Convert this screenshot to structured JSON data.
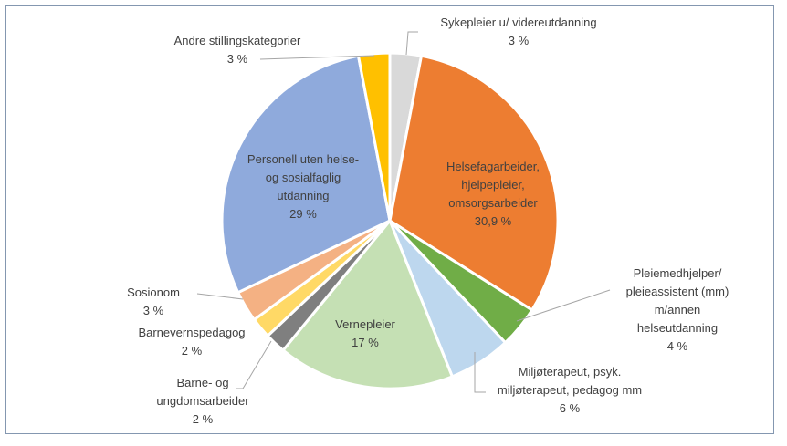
{
  "chart_data": {
    "type": "pie",
    "title": "",
    "slices": [
      {
        "label": [
          "Sykepleier u/ videreutdanning"
        ],
        "value": 3,
        "value_label": "3 %",
        "color": "#d9d9d9"
      },
      {
        "label": [
          "Helsefagarbeider,",
          "hjelpepleier,",
          "omsorgsarbeider"
        ],
        "value": 30.9,
        "value_label": "30,9 %",
        "color": "#ed7d31"
      },
      {
        "label": [
          "Pleiemedhjelper/",
          "pleieassistent (mm)",
          "m/annen",
          "helseutdanning"
        ],
        "value": 4,
        "value_label": "4 %",
        "color": "#70ad47"
      },
      {
        "label": [
          "Miljøterapeut, psyk.",
          "miljøterapeut, pedagog mm"
        ],
        "value": 6,
        "value_label": "6 %",
        "color": "#bdd7ee"
      },
      {
        "label": [
          "Vernepleier"
        ],
        "value": 17,
        "value_label": "17 %",
        "color": "#c5e0b4"
      },
      {
        "label": [
          "Barne- og",
          "ungdomsarbeider"
        ],
        "value": 2,
        "value_label": "2 %",
        "color": "#7f7f7f"
      },
      {
        "label": [
          "Barnevernspedagog"
        ],
        "value": 2,
        "value_label": "2 %",
        "color": "#ffd966"
      },
      {
        "label": [
          "Sosionom"
        ],
        "value": 3,
        "value_label": "3 %",
        "color": "#f4b183"
      },
      {
        "label": [
          "Personell uten helse-",
          "og sosialfaglig",
          "utdanning"
        ],
        "value": 29,
        "value_label": "29 %",
        "color": "#8faadc"
      },
      {
        "label": [
          "Andre stillingskategorier"
        ],
        "value": 3,
        "value_label": "3 %",
        "color": "#ffc000"
      }
    ],
    "start_angle": "12 o'clock",
    "direction": "clockwise",
    "legend": "none"
  }
}
